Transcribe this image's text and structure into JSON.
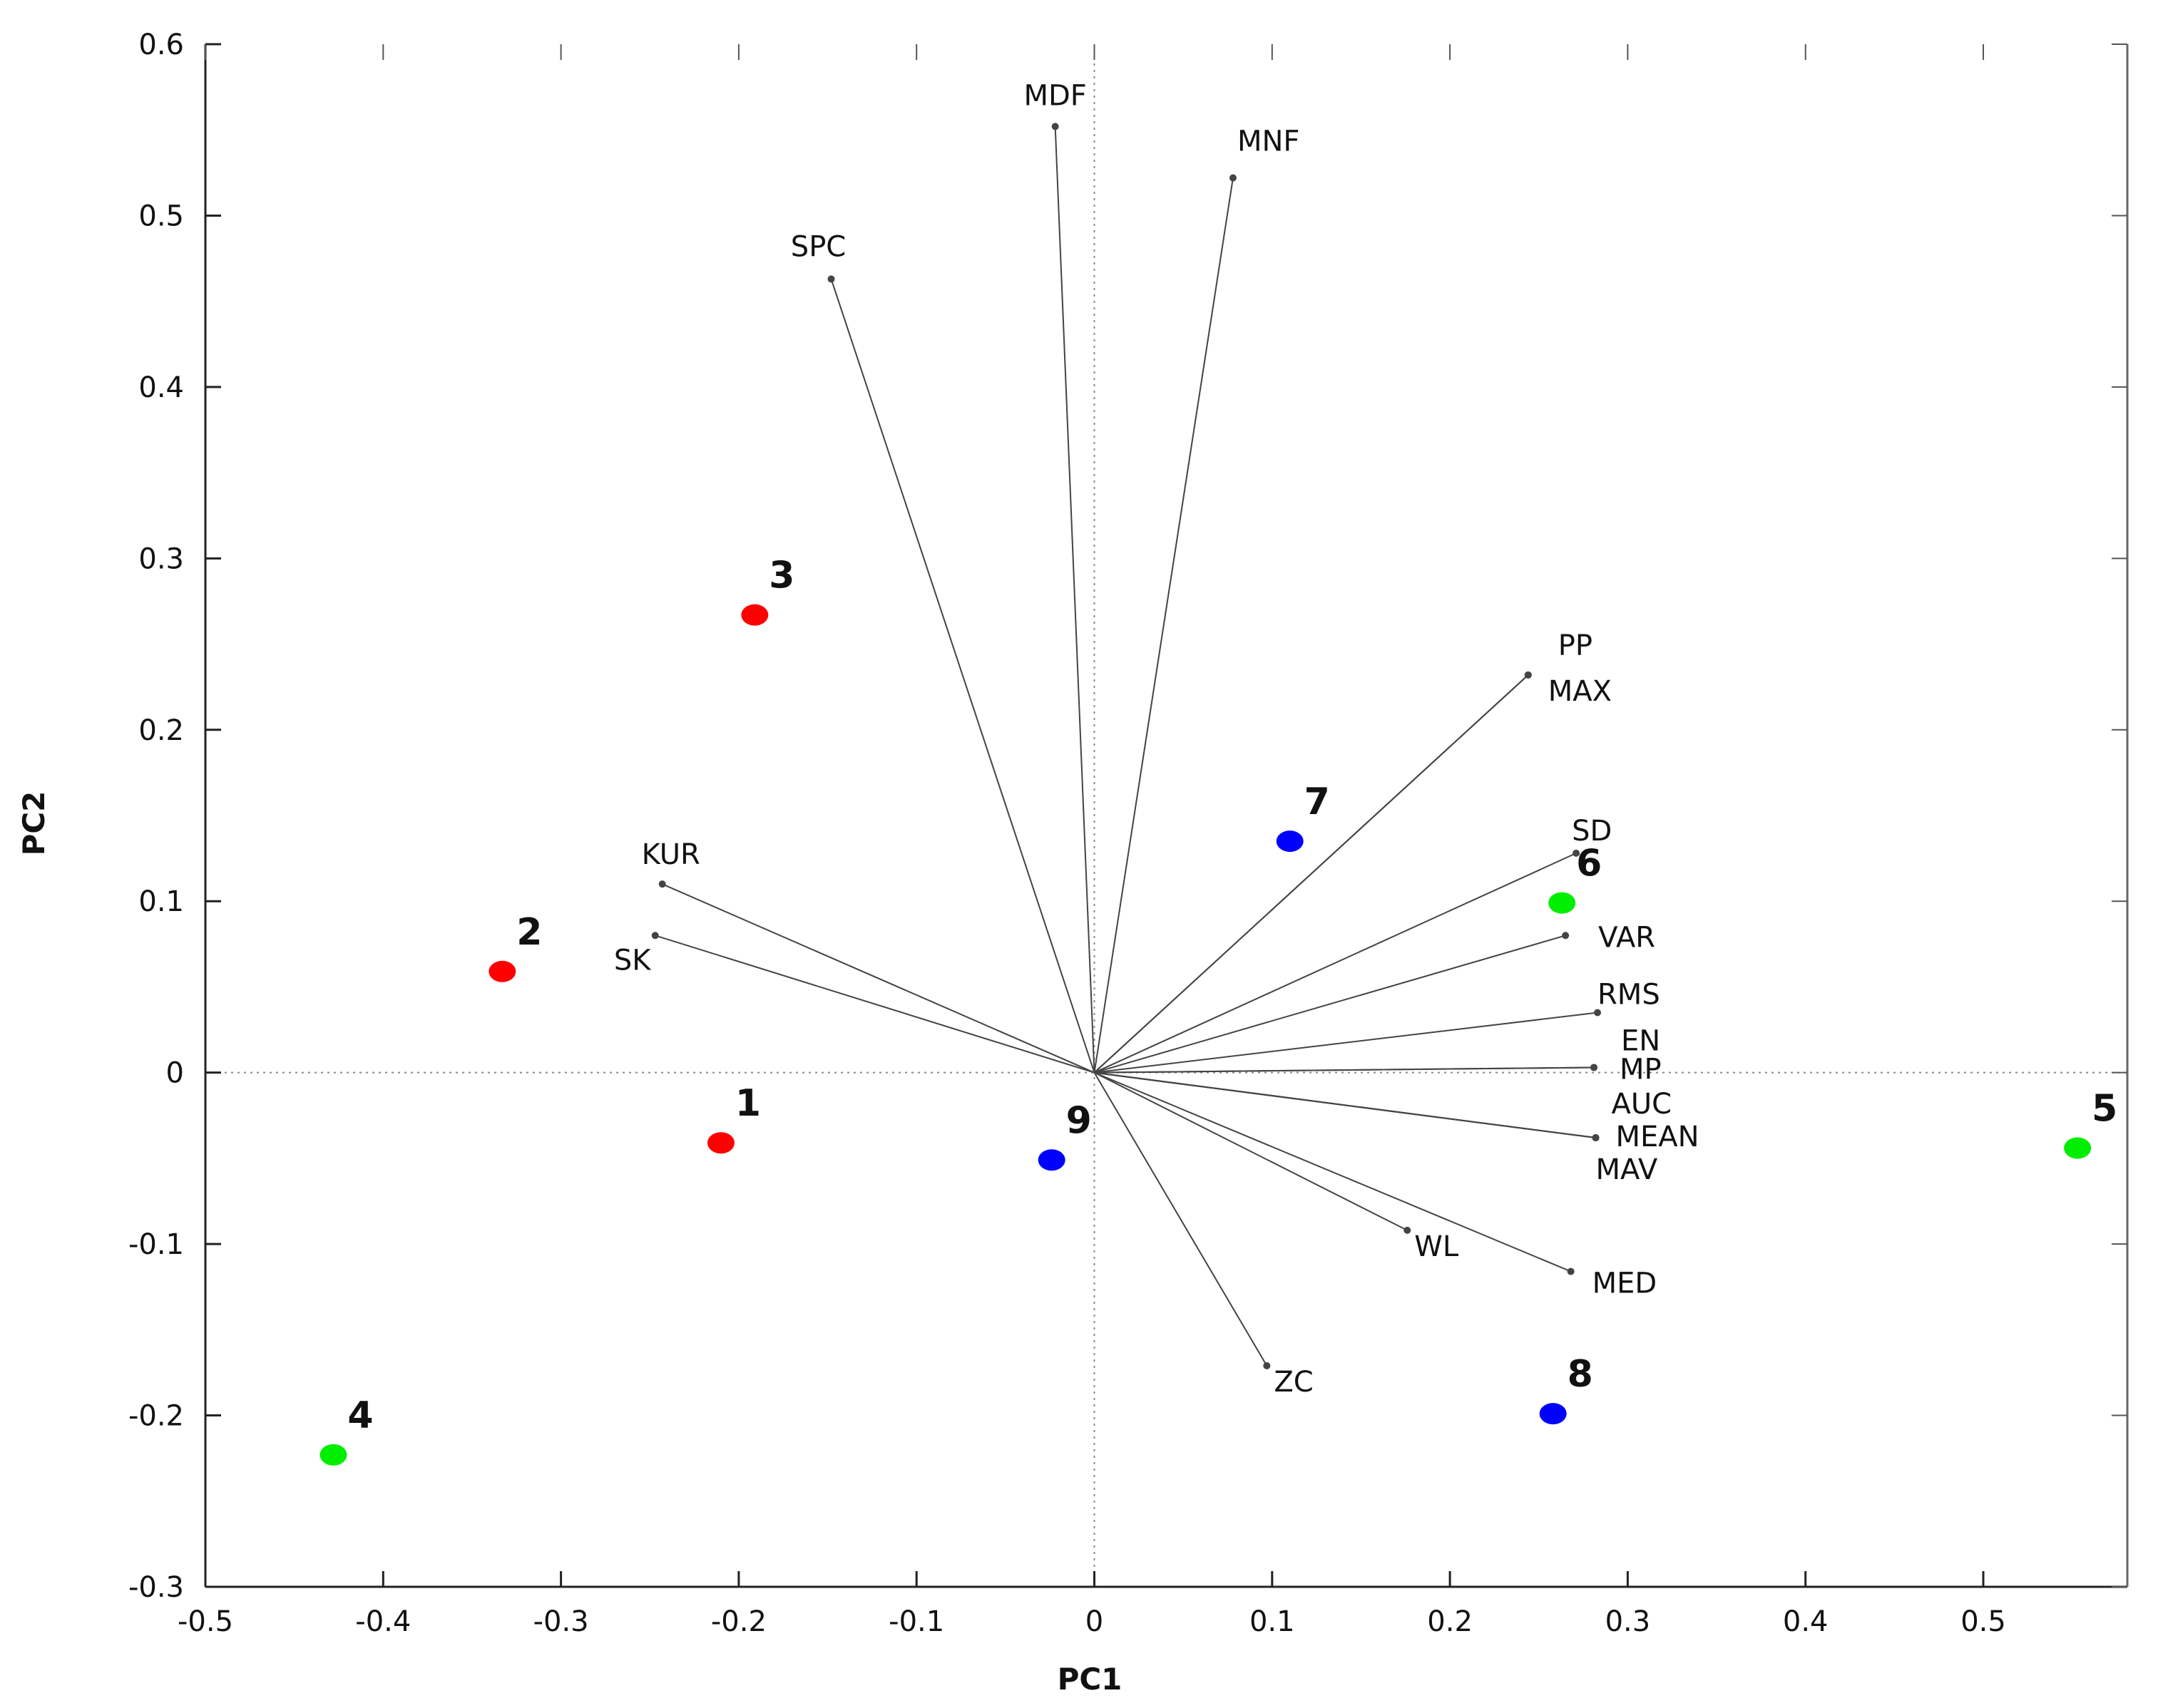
{
  "chart_data": {
    "type": "scatter",
    "subtype": "pca-biplot",
    "title": "",
    "xlabel": "PC1",
    "ylabel": "PC2",
    "xlim": [
      -0.5,
      0.58
    ],
    "ylim": [
      -0.3,
      0.6
    ],
    "xticks": [
      -0.5,
      -0.4,
      -0.3,
      -0.2,
      -0.1,
      0,
      0.1,
      0.2,
      0.3,
      0.4,
      0.5
    ],
    "xtick_labels": [
      "-0.5",
      "-0.4",
      "-0.3",
      "-0.2",
      "-0.1",
      "0",
      "0.1",
      "0.2",
      "0.3",
      "0.4",
      "0.5"
    ],
    "yticks": [
      -0.3,
      -0.2,
      -0.1,
      0,
      0.1,
      0.2,
      0.3,
      0.4,
      0.5,
      0.6
    ],
    "ytick_labels": [
      "-0.3",
      "-0.2",
      "-0.1",
      "0",
      "0.1",
      "0.2",
      "0.3",
      "0.4",
      "0.5",
      "0.6"
    ],
    "colors": {
      "group_red": "#ff0000",
      "group_green": "#00ee00",
      "group_blue": "#0000ff",
      "loading": "#444444",
      "zero_line": "#888888"
    },
    "points": [
      {
        "label": "1",
        "x": -0.21,
        "y": -0.041,
        "group": "red"
      },
      {
        "label": "2",
        "x": -0.333,
        "y": 0.059,
        "group": "red"
      },
      {
        "label": "3",
        "x": -0.191,
        "y": 0.267,
        "group": "red"
      },
      {
        "label": "4",
        "x": -0.428,
        "y": -0.223,
        "group": "green"
      },
      {
        "label": "5",
        "x": 0.553,
        "y": -0.044,
        "group": "green"
      },
      {
        "label": "6",
        "x": 0.263,
        "y": 0.099,
        "group": "green"
      },
      {
        "label": "7",
        "x": 0.11,
        "y": 0.135,
        "group": "blue"
      },
      {
        "label": "8",
        "x": 0.258,
        "y": -0.199,
        "group": "blue"
      },
      {
        "label": "9",
        "x": -0.024,
        "y": -0.051,
        "group": "blue"
      }
    ],
    "loadings": [
      {
        "name": "MDF",
        "x": -0.022,
        "y": 0.552
      },
      {
        "name": "MNF",
        "x": 0.078,
        "y": 0.522
      },
      {
        "name": "SPC",
        "x": -0.148,
        "y": 0.463
      },
      {
        "name": "PP",
        "x": 0.244,
        "y": 0.232
      },
      {
        "name": "MAX",
        "x": 0.244,
        "y": 0.232
      },
      {
        "name": "SD",
        "x": 0.271,
        "y": 0.128
      },
      {
        "name": "VAR",
        "x": 0.265,
        "y": 0.08
      },
      {
        "name": "RMS",
        "x": 0.283,
        "y": 0.035
      },
      {
        "name": "EN",
        "x": 0.281,
        "y": 0.003
      },
      {
        "name": "MP",
        "x": 0.281,
        "y": 0.003
      },
      {
        "name": "AUC",
        "x": 0.282,
        "y": -0.038
      },
      {
        "name": "MEAN",
        "x": 0.282,
        "y": -0.038
      },
      {
        "name": "MAV",
        "x": 0.282,
        "y": -0.038
      },
      {
        "name": "WL",
        "x": 0.176,
        "y": -0.092
      },
      {
        "name": "MED",
        "x": 0.268,
        "y": -0.116
      },
      {
        "name": "ZC",
        "x": 0.097,
        "y": -0.171
      },
      {
        "name": "KUR",
        "x": -0.243,
        "y": 0.11
      },
      {
        "name": "SK",
        "x": -0.247,
        "y": 0.08
      }
    ]
  }
}
